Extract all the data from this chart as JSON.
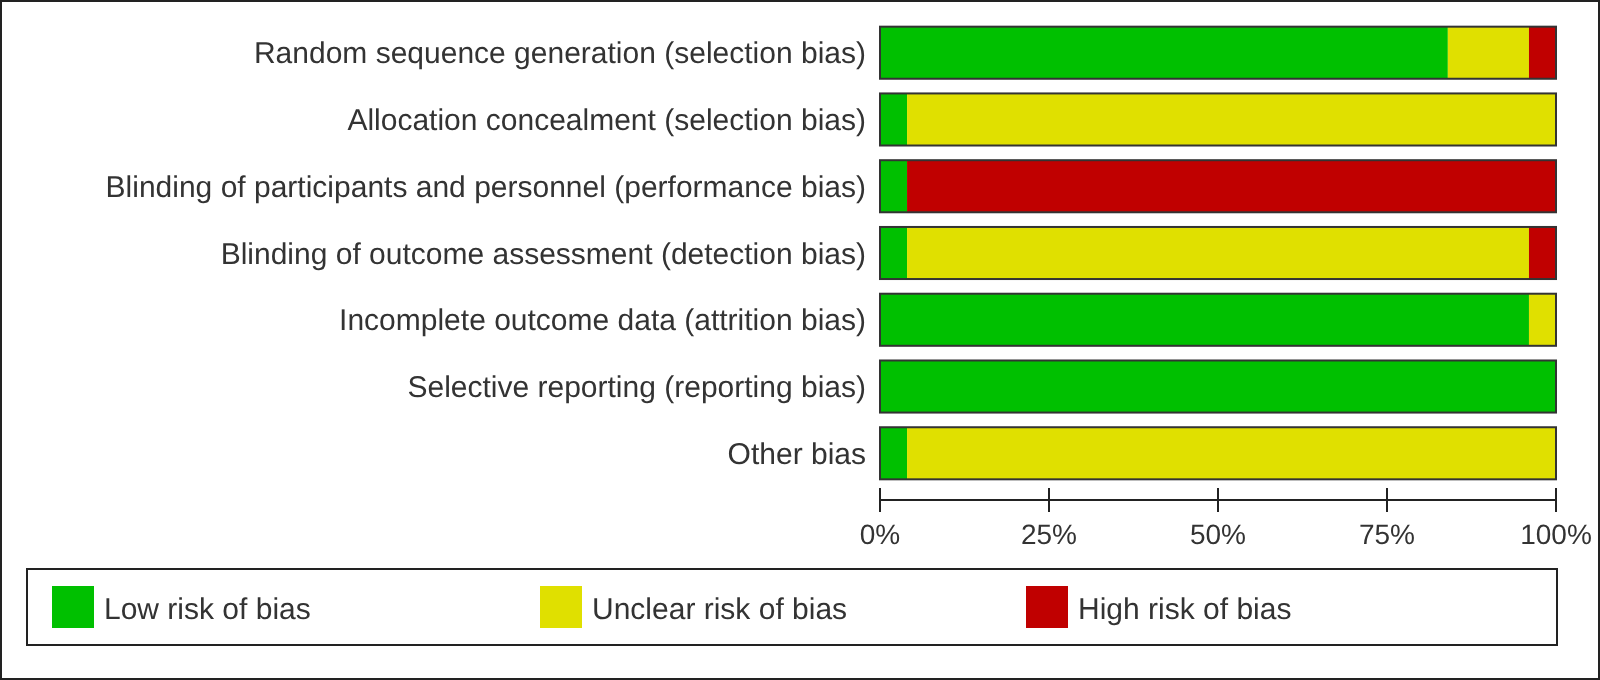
{
  "chart_data": {
    "type": "bar",
    "orientation": "horizontal",
    "stacked": true,
    "categories": [
      "Random sequence generation (selection bias)",
      "Allocation concealment (selection bias)",
      "Blinding of participants and personnel (performance bias)",
      "Blinding of outcome assessment (detection bias)",
      "Incomplete outcome data (attrition bias)",
      "Selective reporting (reporting bias)",
      "Other bias"
    ],
    "series": [
      {
        "name": "Low risk of bias",
        "color": "#00c000",
        "values": [
          84,
          4,
          4,
          4,
          96,
          100,
          4
        ]
      },
      {
        "name": "Unclear risk of bias",
        "color": "#e0e000",
        "values": [
          12,
          96,
          0,
          92,
          4,
          0,
          96
        ]
      },
      {
        "name": "High risk of bias",
        "color": "#c00000",
        "values": [
          4,
          0,
          96,
          4,
          0,
          0,
          0
        ]
      }
    ],
    "xlim": [
      0,
      100
    ],
    "xticks": [
      {
        "value": 0,
        "label": "0%"
      },
      {
        "value": 25,
        "label": "25%"
      },
      {
        "value": 50,
        "label": "50%"
      },
      {
        "value": 75,
        "label": "75%"
      },
      {
        "value": 100,
        "label": "100%"
      }
    ],
    "legend": "bottom"
  }
}
